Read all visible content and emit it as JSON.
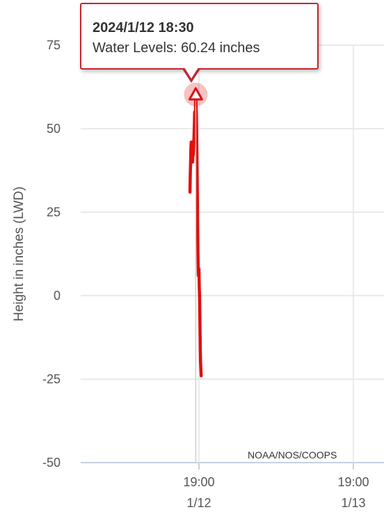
{
  "chart_data": {
    "type": "line",
    "ylabel": "Height in inches (LWD)",
    "ylim": [
      -50,
      75
    ],
    "yticks": [
      75,
      50,
      25,
      0,
      -25,
      -50
    ],
    "xticks": [
      {
        "time": "2024-01-12T19:00",
        "label_time": "19:00",
        "label_date": "1/12"
      },
      {
        "time": "2024-01-13T19:00",
        "label_time": "19:00",
        "label_date": "1/13"
      }
    ],
    "grid": true,
    "series": [
      {
        "name": "Water Levels",
        "color": "#e01010",
        "points": [
          [
            "2024-01-12T17:36",
            31
          ],
          [
            "2024-01-12T17:39",
            36
          ],
          [
            "2024-01-12T17:42",
            40
          ],
          [
            "2024-01-12T17:45",
            44
          ],
          [
            "2024-01-12T17:48",
            46
          ],
          [
            "2024-01-12T17:51",
            46
          ],
          [
            "2024-01-12T17:54",
            44
          ],
          [
            "2024-01-12T17:57",
            42
          ],
          [
            "2024-01-12T18:00",
            40
          ],
          [
            "2024-01-12T18:03",
            42
          ],
          [
            "2024-01-12T18:06",
            42
          ],
          [
            "2024-01-12T18:09",
            44
          ],
          [
            "2024-01-12T18:12",
            46
          ],
          [
            "2024-01-12T18:15",
            49
          ],
          [
            "2024-01-12T18:18",
            52
          ],
          [
            "2024-01-12T18:20",
            55
          ],
          [
            "2024-01-12T18:22",
            52
          ],
          [
            "2024-01-12T18:24",
            53
          ],
          [
            "2024-01-12T18:26",
            52
          ],
          [
            "2024-01-12T18:28",
            58
          ],
          [
            "2024-01-12T18:30",
            60.24
          ],
          [
            "2024-01-12T18:33",
            58
          ],
          [
            "2024-01-12T18:36",
            54
          ],
          [
            "2024-01-12T18:39",
            46
          ],
          [
            "2024-01-12T18:42",
            38
          ],
          [
            "2024-01-12T18:45",
            30
          ],
          [
            "2024-01-12T18:48",
            20
          ],
          [
            "2024-01-12T18:51",
            12
          ],
          [
            "2024-01-12T18:54",
            6
          ],
          [
            "2024-01-12T18:57",
            6
          ],
          [
            "2024-01-12T19:00",
            8
          ],
          [
            "2024-01-12T19:03",
            2
          ],
          [
            "2024-01-12T19:06",
            0
          ],
          [
            "2024-01-12T19:09",
            -8
          ],
          [
            "2024-01-12T19:12",
            -16
          ],
          [
            "2024-01-12T19:15",
            -20
          ],
          [
            "2024-01-12T19:18",
            -22
          ],
          [
            "2024-01-12T19:21",
            -24
          ]
        ]
      }
    ],
    "tooltip": {
      "date": "2024/1/12 18:30",
      "text": "Water Levels: 60.24 inches",
      "point_time": "2024-01-12T18:30",
      "point_value": 60.24
    },
    "credit": "NOAA/NOS/COOPS"
  }
}
